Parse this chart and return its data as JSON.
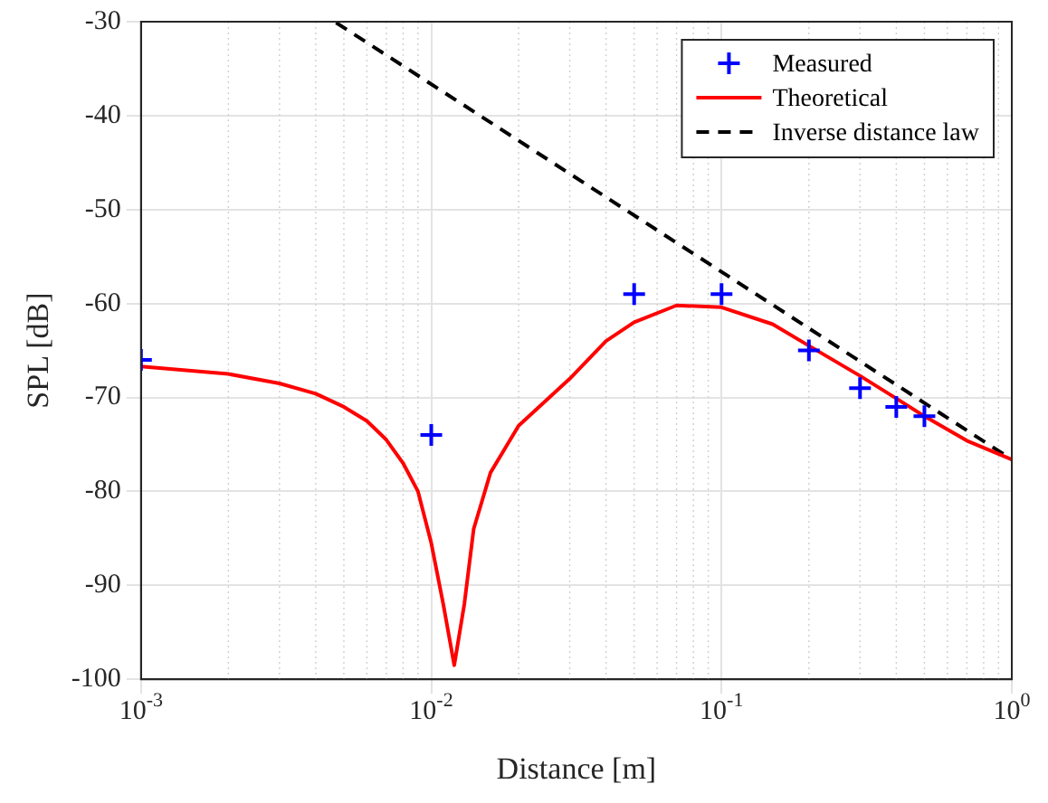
{
  "chart_data": {
    "type": "line",
    "xlabel": "Distance [m]",
    "ylabel": "SPL [dB]",
    "log": "x",
    "xlim": [
      0.001,
      1
    ],
    "xticks": [
      {
        "value": 0.001,
        "label": "10$^{-3}$"
      },
      {
        "value": 0.01,
        "label": "10$^{-2}$"
      },
      {
        "value": 0.1,
        "label": "10$^{-1}$"
      },
      {
        "value": 1,
        "label": "10$^{0}$"
      }
    ],
    "ylim": [
      -100,
      -30
    ],
    "yticks": [
      -100,
      -90,
      -80,
      -70,
      -60,
      -50,
      -40,
      -30
    ],
    "grid": true,
    "legend": "top right",
    "series": [
      {
        "name": "Measured",
        "type": "scatter",
        "marker": "cross",
        "color": "#0000ff",
        "x": [
          0.001,
          0.01,
          0.05,
          0.1,
          0.2,
          0.3,
          0.4,
          0.5
        ],
        "values": [
          -66,
          -74,
          -59,
          -59,
          -65,
          -69,
          -71,
          -72
        ]
      },
      {
        "name": "Theoretical",
        "type": "line",
        "marker": "none",
        "line_style": "solid",
        "color": "#ff0000",
        "x": [
          0.001,
          0.002,
          0.003,
          0.004,
          0.005,
          0.006,
          0.007,
          0.008,
          0.009,
          0.01,
          0.011,
          0.012,
          0.013,
          0.014,
          0.016,
          0.02,
          0.03,
          0.04,
          0.05,
          0.07,
          0.1,
          0.15,
          0.2,
          0.3,
          0.4,
          0.5,
          0.7,
          1
        ],
        "values": [
          -66.7,
          -67.5,
          -68.5,
          -69.6,
          -71,
          -72.5,
          -74.5,
          -77,
          -80,
          -85.5,
          -92,
          -98.5,
          -92,
          -84,
          -78,
          -73,
          -68,
          -64,
          -62,
          -60.2,
          -60.4,
          -62.2,
          -64.5,
          -67.7,
          -70.1,
          -72,
          -74.6,
          -76.6
        ]
      },
      {
        "name": "Inverse distance law",
        "type": "line",
        "marker": "none",
        "line_style": "dashed",
        "color": "#000000",
        "x": [
          0.0047,
          1
        ],
        "values": [
          -30.1,
          -76.6
        ]
      }
    ]
  }
}
